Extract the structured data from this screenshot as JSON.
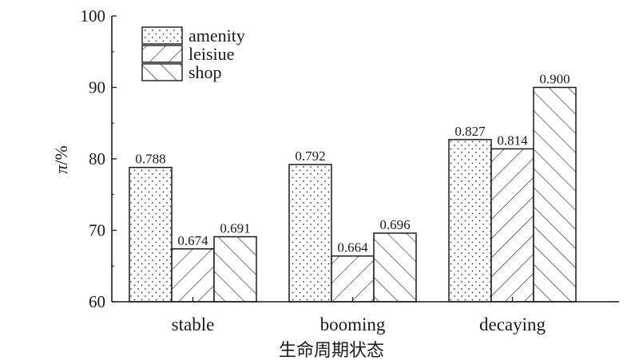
{
  "chart_data": {
    "type": "bar",
    "title": "",
    "xlabel": "生命周期状态",
    "ylabel": "π/%",
    "ylim": [
      60,
      100
    ],
    "yticks": [
      60,
      70,
      80,
      90,
      100
    ],
    "grid": false,
    "legend_position": "top-left",
    "categories": [
      "stable",
      "booming",
      "decaying"
    ],
    "series": [
      {
        "name": "amenity",
        "pattern": "dots",
        "values": [
          78.8,
          79.2,
          82.7
        ],
        "labels": [
          "0.788",
          "0.792",
          "0.827"
        ]
      },
      {
        "name": "leisiue",
        "pattern": "forward-hatch",
        "values": [
          67.4,
          66.4,
          81.4
        ],
        "labels": [
          "0.674",
          "0.664",
          "0.814"
        ]
      },
      {
        "name": "shop",
        "pattern": "back-hatch",
        "values": [
          69.1,
          69.6,
          90.0
        ],
        "labels": [
          "0.691",
          "0.696",
          "0.900"
        ]
      }
    ],
    "colors": {
      "stroke": "#1a1a1a",
      "fill": "#ffffff"
    }
  }
}
